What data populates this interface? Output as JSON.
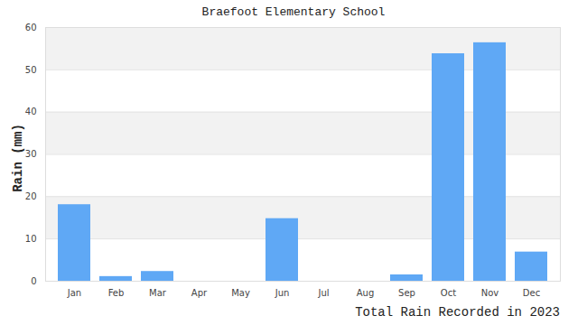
{
  "chart_data": {
    "type": "bar",
    "title": "Braefoot Elementary School",
    "y_label": "Rain (mm)",
    "caption": "Total Rain Recorded in 2023",
    "categories": [
      "Jan",
      "Feb",
      "Mar",
      "Apr",
      "May",
      "Jun",
      "Jul",
      "Aug",
      "Sep",
      "Oct",
      "Nov",
      "Dec"
    ],
    "values": [
      18.1,
      1.1,
      2.3,
      0,
      0,
      14.8,
      0,
      0,
      1.5,
      53.8,
      56.4,
      6.9
    ],
    "color": "#5fa8f5",
    "ylim": [
      0,
      60
    ],
    "yticks": [
      0,
      10,
      20,
      30,
      40,
      50,
      60
    ],
    "grid": true
  }
}
